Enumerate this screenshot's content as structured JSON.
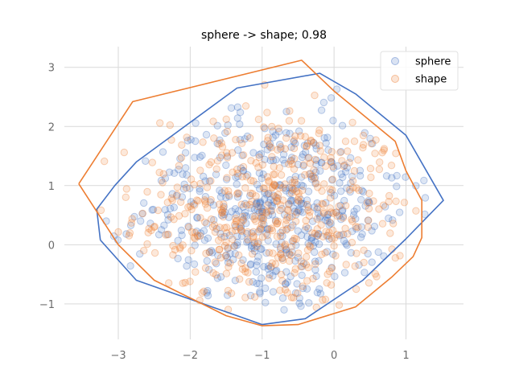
{
  "chart_data": {
    "type": "scatter",
    "title": "sphere -> shape; 0.98",
    "xlabel": "",
    "ylabel": "",
    "xlim": [
      -3.75,
      1.8
    ],
    "ylim": [
      -1.6,
      3.35
    ],
    "xticks": [
      -3,
      -2,
      -1,
      0,
      1
    ],
    "yticks": [
      -1,
      0,
      1,
      2,
      3
    ],
    "xtick_labels": [
      "−3",
      "−2",
      "−1",
      "0",
      "1"
    ],
    "ytick_labels": [
      "−1",
      "0",
      "1",
      "2",
      "3"
    ],
    "grid": true,
    "legend_position": "top-right",
    "series": [
      {
        "name": "sphere",
        "color": "#4472c4",
        "point_count": 500,
        "hull": [
          [
            -3.25,
            0.08
          ],
          [
            -2.75,
            -0.6
          ],
          [
            -1.0,
            -1.35
          ],
          [
            -0.4,
            -1.25
          ],
          [
            0.4,
            -0.6
          ],
          [
            1.0,
            0.1
          ],
          [
            1.52,
            0.75
          ],
          [
            1.0,
            1.85
          ],
          [
            0.3,
            2.55
          ],
          [
            -0.2,
            2.9
          ],
          [
            -1.35,
            2.65
          ],
          [
            -2.75,
            1.4
          ],
          [
            -3.05,
            1.0
          ],
          [
            -3.3,
            0.6
          ],
          [
            -3.25,
            0.08
          ]
        ]
      },
      {
        "name": "shape",
        "color": "#ed7d31",
        "point_count": 500,
        "hull": [
          [
            -3.55,
            1.03
          ],
          [
            -3.0,
            0.0
          ],
          [
            -2.5,
            -0.6
          ],
          [
            -1.5,
            -1.2
          ],
          [
            -1.0,
            -1.37
          ],
          [
            -0.5,
            -1.35
          ],
          [
            0.3,
            -1.05
          ],
          [
            0.8,
            -0.55
          ],
          [
            1.1,
            -0.2
          ],
          [
            1.22,
            0.12
          ],
          [
            1.22,
            0.75
          ],
          [
            1.0,
            1.25
          ],
          [
            0.85,
            1.75
          ],
          [
            0.0,
            2.6
          ],
          [
            -0.45,
            3.12
          ],
          [
            -2.8,
            2.42
          ],
          [
            -3.55,
            1.03
          ]
        ]
      }
    ]
  }
}
